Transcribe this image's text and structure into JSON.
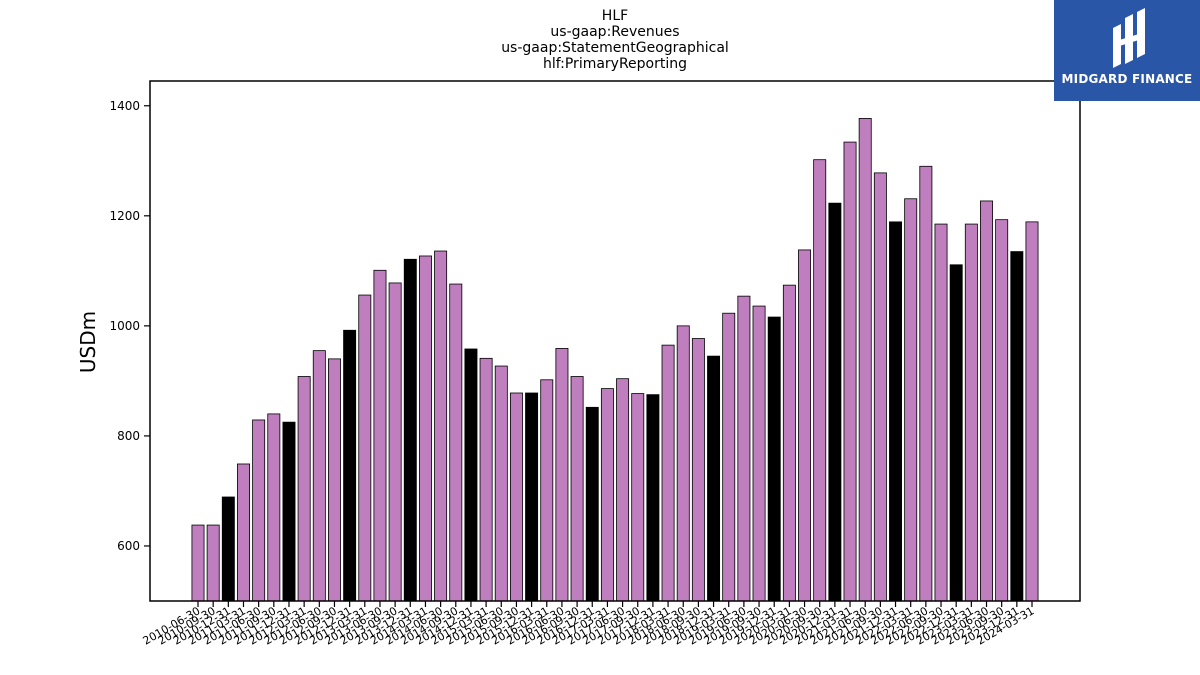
{
  "chart_data": {
    "type": "bar",
    "title_lines": [
      "HLF",
      "us-gaap:Revenues",
      "us-gaap:StatementGeographical",
      "hlf:PrimaryReporting"
    ],
    "xlabel": "",
    "ylabel": "USDm",
    "ylim": [
      500,
      1445
    ],
    "yticks": [
      600,
      800,
      1000,
      1200,
      1400
    ],
    "grid": false,
    "colors": {
      "normal": "#bf7fbf",
      "highlight": "#000000",
      "edge": "#000000"
    },
    "categories": [
      "2010-06-30",
      "2010-09-30",
      "2010-12-31",
      "2011-03-31",
      "2011-06-30",
      "2011-09-30",
      "2011-12-31",
      "2012-03-31",
      "2012-06-30",
      "2012-09-30",
      "2012-12-31",
      "2013-03-31",
      "2013-06-30",
      "2013-09-30",
      "2013-12-31",
      "2014-03-31",
      "2014-06-30",
      "2014-09-30",
      "2014-12-31",
      "2015-03-31",
      "2015-06-30",
      "2015-09-30",
      "2015-12-31",
      "2016-03-31",
      "2016-06-30",
      "2016-09-30",
      "2016-12-31",
      "2017-03-31",
      "2017-06-30",
      "2017-09-30",
      "2017-12-31",
      "2018-03-31",
      "2018-06-30",
      "2018-09-30",
      "2018-12-31",
      "2019-03-31",
      "2019-06-30",
      "2019-09-30",
      "2019-12-31",
      "2020-03-31",
      "2020-06-30",
      "2020-09-30",
      "2020-12-31",
      "2021-03-31",
      "2021-06-30",
      "2021-09-30",
      "2021-12-31",
      "2022-03-31",
      "2022-06-30",
      "2022-09-30",
      "2022-12-31",
      "2023-03-31",
      "2023-06-30",
      "2023-09-30",
      "2023-12-31",
      "2024-03-31"
    ],
    "values": [
      638,
      638,
      689,
      749,
      829,
      840,
      825,
      908,
      955,
      940,
      992,
      1056,
      1101,
      1078,
      1121,
      1127,
      1136,
      1076,
      958,
      941,
      927,
      878,
      878,
      902,
      959,
      908,
      852,
      886,
      904,
      877,
      875,
      965,
      1000,
      977,
      945,
      1023,
      1054,
      1036,
      1016,
      1074,
      1138,
      1302,
      1223,
      1334,
      1377,
      1278,
      1189,
      1231,
      1290,
      1185,
      1111,
      1185,
      1227,
      1193,
      1135,
      1189
    ],
    "highlighted": [
      false,
      false,
      true,
      false,
      false,
      false,
      true,
      false,
      false,
      false,
      true,
      false,
      false,
      false,
      true,
      false,
      false,
      false,
      true,
      false,
      false,
      false,
      true,
      false,
      false,
      false,
      true,
      false,
      false,
      false,
      true,
      false,
      false,
      false,
      true,
      false,
      false,
      false,
      true,
      false,
      false,
      false,
      true,
      false,
      false,
      false,
      true,
      false,
      false,
      false,
      true,
      false,
      false,
      false,
      true,
      false
    ]
  },
  "logo": {
    "text": "MIDGARD FINANCE"
  }
}
